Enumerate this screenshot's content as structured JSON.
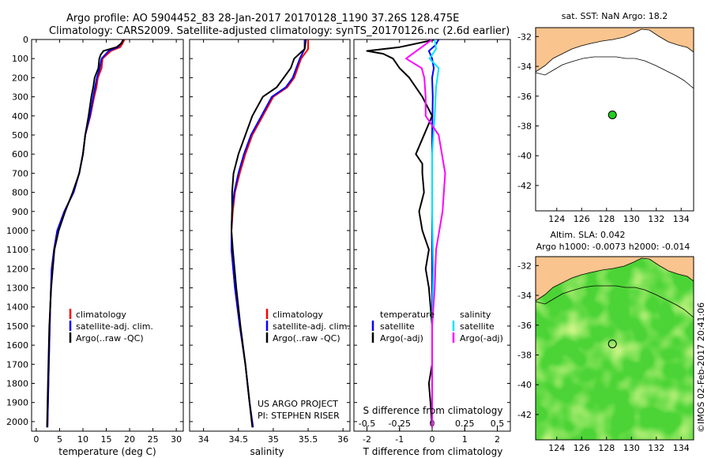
{
  "header": {
    "line1": "Argo profile: AO 5904452_83 28-Jan-2017 20170128_1190 37.26S 128.475E",
    "line2": "Climatology: CARS2009. Satellite-adjusted climatology: synTS_20170126.nc (2.6d earlier)"
  },
  "colors": {
    "clim": "#ff0000",
    "sat": "#0000ff",
    "argo": "#000000",
    "sal_sat": "#00e5ff",
    "sal_argo": "#ff00ff",
    "land": "#f9c48e",
    "sea_green": "#4cd436",
    "marker": "#22cc22"
  },
  "depth_axis": {
    "min": 0,
    "max": 2050,
    "ticks": [
      0,
      100,
      200,
      300,
      400,
      500,
      600,
      700,
      800,
      900,
      1000,
      1100,
      1200,
      1300,
      1400,
      1500,
      1600,
      1700,
      1800,
      1900,
      2000
    ]
  },
  "chart_data": [
    {
      "type": "line",
      "id": "temperature",
      "xlabel": "temperature (deg C)",
      "xlim": [
        -1,
        31.5
      ],
      "xticks": [
        0,
        5,
        10,
        15,
        20,
        25,
        30
      ],
      "legend": [
        "climatology",
        "satellite-adj. clim.",
        "Argo(..raw -QC)"
      ],
      "series": [
        {
          "name": "climatology",
          "color": "#ff0000",
          "x": [
            18.9,
            18.5,
            18.0,
            16.0,
            14.2,
            14.0,
            13.2,
            12.9,
            12.4,
            11.6,
            10.5,
            10.0,
            9.2,
            8.0,
            6.0,
            4.5,
            3.8,
            3.3,
            3.0,
            2.8,
            2.6,
            2.4
          ],
          "y": [
            0,
            20,
            40,
            60,
            100,
            150,
            200,
            250,
            300,
            400,
            500,
            600,
            700,
            800,
            900,
            1000,
            1100,
            1200,
            1400,
            1600,
            1800,
            2030
          ]
        },
        {
          "name": "satellite-adj. clim.",
          "color": "#0000ff",
          "x": [
            18.7,
            18.2,
            17.5,
            15.5,
            14.0,
            13.6,
            13.0,
            12.6,
            12.2,
            11.5,
            10.5,
            10.0,
            9.2,
            8.0,
            6.0,
            4.5,
            3.8,
            3.3,
            3.0,
            2.8,
            2.6,
            2.4
          ],
          "y": [
            0,
            20,
            40,
            60,
            100,
            150,
            200,
            250,
            300,
            400,
            500,
            600,
            700,
            800,
            900,
            1000,
            1100,
            1200,
            1400,
            1600,
            1800,
            2030
          ]
        },
        {
          "name": "Argo(..raw -QC)",
          "color": "#000000",
          "x": [
            18.6,
            18.3,
            17.2,
            14.4,
            13.8,
            13.5,
            13.3,
            12.5,
            12.2,
            11.8,
            11.2,
            10.5,
            10.0,
            9.2,
            7.8,
            6.2,
            4.8,
            3.9,
            3.2,
            2.8,
            2.5,
            2.3
          ],
          "y": [
            0,
            20,
            40,
            60,
            80,
            100,
            150,
            200,
            250,
            300,
            400,
            500,
            600,
            700,
            800,
            900,
            1000,
            1100,
            1300,
            1500,
            1800,
            2030
          ]
        }
      ]
    },
    {
      "type": "line",
      "id": "salinity",
      "xlabel": "salinity",
      "xlim": [
        33.8,
        36.1
      ],
      "xticks": [
        34,
        34.5,
        35,
        35.5,
        36
      ],
      "xticklabels": [
        "34",
        "34.5",
        "35",
        "35.5",
        "36"
      ],
      "legend": [
        "climatology",
        "satellite-adj. clim.",
        "Argo(..raw -QC)"
      ],
      "series": [
        {
          "name": "climatology",
          "color": "#ff0000",
          "x": [
            35.5,
            35.5,
            35.4,
            35.35,
            35.3,
            35.2,
            35.0,
            34.85,
            34.7,
            34.6,
            34.52,
            34.45,
            34.42,
            34.4,
            34.4,
            34.45,
            34.52,
            34.6,
            34.66,
            34.71
          ],
          "y": [
            0,
            50,
            100,
            150,
            200,
            250,
            300,
            400,
            500,
            600,
            700,
            800,
            900,
            1000,
            1100,
            1300,
            1500,
            1700,
            1900,
            2030
          ]
        },
        {
          "name": "satellite-adj. clim.",
          "color": "#0000ff",
          "x": [
            35.45,
            35.45,
            35.38,
            35.33,
            35.28,
            35.18,
            34.98,
            34.83,
            34.68,
            34.58,
            34.5,
            34.44,
            34.41,
            34.4,
            34.4,
            34.45,
            34.52,
            34.6,
            34.66,
            34.71
          ],
          "y": [
            0,
            50,
            100,
            150,
            200,
            250,
            300,
            400,
            500,
            600,
            700,
            800,
            900,
            1000,
            1100,
            1300,
            1500,
            1700,
            1900,
            2030
          ]
        },
        {
          "name": "Argo(..raw -QC)",
          "color": "#000000",
          "x": [
            35.47,
            35.45,
            35.3,
            35.25,
            35.15,
            35.05,
            34.85,
            34.7,
            34.6,
            34.5,
            34.43,
            34.41,
            34.41,
            34.4,
            34.42,
            34.47,
            34.53,
            34.6,
            34.66,
            34.7
          ],
          "y": [
            0,
            50,
            100,
            150,
            200,
            250,
            300,
            400,
            500,
            600,
            700,
            800,
            900,
            1000,
            1100,
            1300,
            1500,
            1700,
            1900,
            2030
          ]
        }
      ],
      "notes": [
        "US ARGO PROJECT",
        "PI: STEPHEN RISER"
      ]
    },
    {
      "type": "line",
      "id": "difference",
      "xlabel": "T difference from climatology",
      "xlabel_top": "S difference from climatology",
      "xlim": [
        -2.4,
        2.4
      ],
      "xticks": [
        -2,
        -1,
        0,
        1,
        2
      ],
      "xticklabels": [
        "-2",
        "-1",
        "0",
        "1",
        "2"
      ],
      "sticks": [
        -0.5,
        -0.25,
        0,
        0.25,
        0.5
      ],
      "sticklabels": [
        "-0.5",
        "-0.25",
        "0",
        "0.25",
        "0.5"
      ],
      "slim": [
        -0.6,
        0.6
      ],
      "legend_heads": [
        "temperature",
        "salinity"
      ],
      "legend": [
        "satellite",
        "Argo(-adj)",
        "satellite",
        "Argo(-adj)"
      ],
      "series": [
        {
          "name": "temperature satellite",
          "color": "#0000ff",
          "axis": "T",
          "x": [
            0.2,
            0.1,
            -0.1,
            0.0,
            0.05,
            0.0,
            0.02,
            0.0,
            0.0,
            0.0,
            0.0,
            0.0,
            0.0
          ],
          "y": [
            0,
            30,
            60,
            100,
            150,
            200,
            300,
            500,
            800,
            1100,
            1400,
            1700,
            2030
          ]
        },
        {
          "name": "temperature Argo(-adj)",
          "color": "#000000",
          "axis": "T",
          "x": [
            0.1,
            -1.0,
            -2.0,
            -1.5,
            -1.2,
            -1.0,
            -0.7,
            -0.3,
            0.0,
            -0.5,
            -0.3,
            -0.3,
            -0.25,
            -0.4,
            -0.3,
            -0.1,
            -0.2,
            -0.1,
            0.0,
            0.0,
            -0.1,
            -0.05,
            0.0
          ],
          "y": [
            0,
            40,
            60,
            75,
            100,
            150,
            200,
            300,
            400,
            600,
            650,
            700,
            800,
            900,
            1000,
            1100,
            1200,
            1300,
            1500,
            1700,
            1800,
            1900,
            2030
          ]
        },
        {
          "name": "salinity satellite",
          "color": "#00e5ff",
          "axis": "S",
          "x": [
            0.02,
            0.03,
            -0.02,
            0.05,
            0.03,
            0.02,
            0.0,
            0.0,
            0.01,
            0.0,
            0.0,
            0.0
          ],
          "y": [
            0,
            50,
            100,
            150,
            250,
            400,
            600,
            900,
            1200,
            1500,
            1800,
            2030
          ]
        },
        {
          "name": "salinity Argo(-adj)",
          "color": "#ff00ff",
          "axis": "S",
          "x": [
            0.0,
            -0.1,
            -0.2,
            -0.08,
            -0.06,
            -0.05,
            -0.05,
            0.05,
            0.1,
            0.08,
            0.03,
            0.02,
            0.0,
            0.0,
            0.0
          ],
          "y": [
            0,
            50,
            100,
            150,
            200,
            300,
            400,
            500,
            700,
            900,
            1100,
            1300,
            1500,
            1800,
            2030
          ]
        }
      ]
    },
    {
      "type": "map",
      "id": "sst-map",
      "title": "sat. SST: NaN Argo: 18.2",
      "xlim": [
        122.3,
        135
      ],
      "ylim": [
        -43.7,
        -31.4
      ],
      "xticks": [
        124,
        126,
        128,
        130,
        132,
        134
      ],
      "yticks": [
        -32,
        -34,
        -36,
        -38,
        -40,
        -42
      ],
      "argo_position": [
        128.475,
        -37.26
      ]
    },
    {
      "type": "map",
      "id": "sla-map",
      "title": "Altim. SLA: 0.042",
      "subtitle": "Argo h1000: -0.0073 h2000: -0.014",
      "xlim": [
        122.3,
        135
      ],
      "ylim": [
        -43.7,
        -31.4
      ],
      "xticks": [
        124,
        126,
        128,
        130,
        132,
        134
      ],
      "yticks": [
        -32,
        -34,
        -36,
        -38,
        -40,
        -42
      ],
      "argo_position": [
        128.475,
        -37.26
      ]
    }
  ],
  "credit": "©IMOS 02-Feb-2017 20:41:06"
}
